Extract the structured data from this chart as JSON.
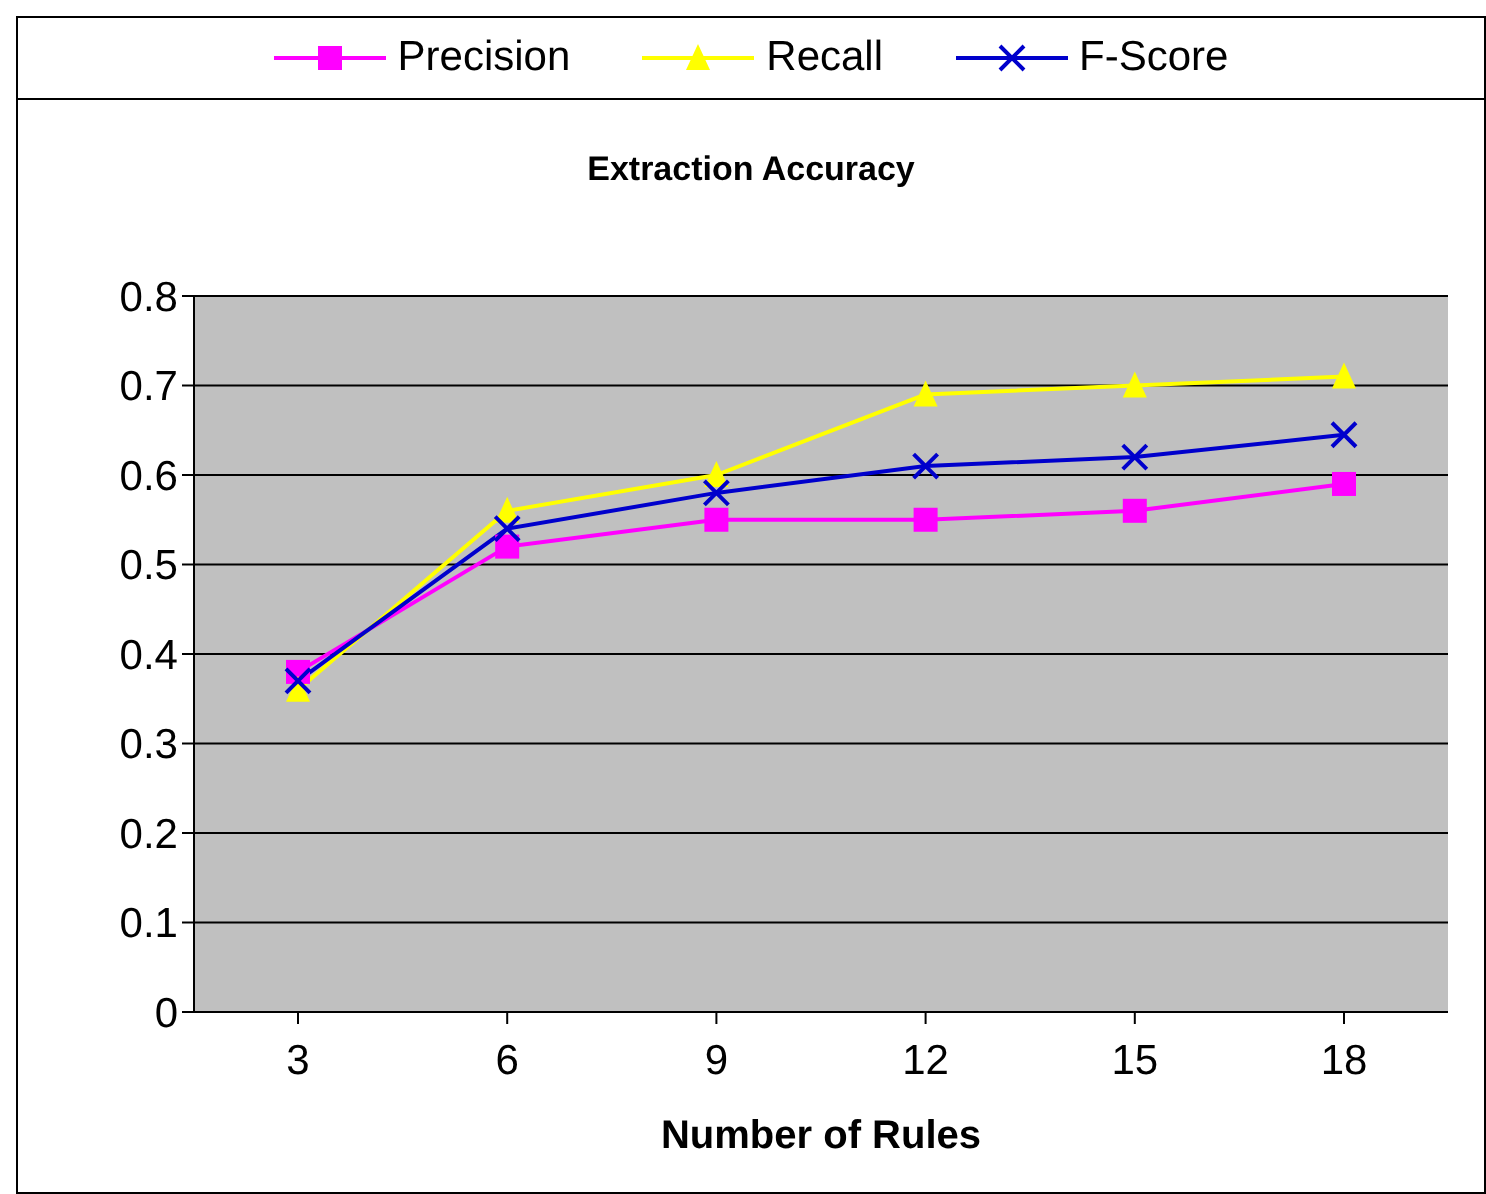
{
  "chart_data": {
    "type": "line",
    "title": "Extraction Accuracy",
    "xlabel": "Number of Rules",
    "categories": [
      "3",
      "6",
      "9",
      "12",
      "15",
      "18"
    ],
    "series": [
      {
        "name": "Precision",
        "color": "#ff00ff",
        "marker": "square",
        "values": [
          0.38,
          0.52,
          0.55,
          0.55,
          0.56,
          0.59
        ]
      },
      {
        "name": "Recall",
        "color": "#ffff00",
        "marker": "triangle",
        "values": [
          0.36,
          0.56,
          0.6,
          0.69,
          0.7,
          0.71
        ]
      },
      {
        "name": "F-Score",
        "color": "#0000cc",
        "marker": "cross",
        "values": [
          0.37,
          0.54,
          0.58,
          0.61,
          0.62,
          0.645
        ]
      }
    ],
    "ylim": [
      0,
      0.8
    ],
    "yticks": [
      0,
      0.1,
      0.2,
      0.3,
      0.4,
      0.5,
      0.6,
      0.7,
      0.8
    ],
    "grid": "y",
    "legend": "top"
  }
}
